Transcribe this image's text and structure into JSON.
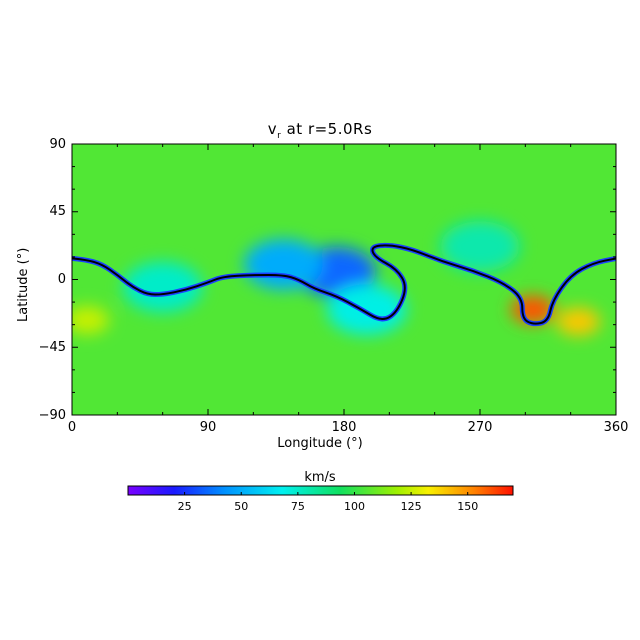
{
  "chart_data": {
    "type": "heatmap",
    "title_main": "v",
    "title_sub": "r",
    "title_rest": " at r=5.0Rs",
    "xlabel": "Longitude (°)",
    "ylabel": "Latitude (°)",
    "xlim": [
      0,
      360
    ],
    "ylim": [
      -90,
      90
    ],
    "xticks": [
      0,
      90,
      180,
      270,
      360
    ],
    "yticks": [
      90,
      45,
      0,
      -45,
      -90
    ],
    "ytick_labels": [
      "90",
      "45",
      "0",
      "−45",
      "−90"
    ],
    "colorbar": {
      "title": "km/s",
      "range": [
        0,
        170
      ],
      "ticks": [
        25,
        50,
        75,
        100,
        125,
        150
      ]
    },
    "background_value": 105,
    "current_sheet": [
      [
        0,
        14
      ],
      [
        10,
        13
      ],
      [
        20,
        10
      ],
      [
        30,
        3
      ],
      [
        40,
        -5
      ],
      [
        50,
        -10
      ],
      [
        60,
        -10
      ],
      [
        75,
        -7
      ],
      [
        90,
        -2
      ],
      [
        100,
        2
      ],
      [
        120,
        3
      ],
      [
        140,
        3
      ],
      [
        150,
        0
      ],
      [
        160,
        -6
      ],
      [
        175,
        -11
      ],
      [
        190,
        -19
      ],
      [
        205,
        -28
      ],
      [
        215,
        -22
      ],
      [
        222,
        -5
      ],
      [
        215,
        7
      ],
      [
        200,
        15
      ],
      [
        198,
        22
      ],
      [
        210,
        23
      ],
      [
        225,
        20
      ],
      [
        245,
        12
      ],
      [
        265,
        6
      ],
      [
        285,
        -2
      ],
      [
        298,
        -12
      ],
      [
        298,
        -26
      ],
      [
        305,
        -30
      ],
      [
        315,
        -28
      ],
      [
        318,
        -14
      ],
      [
        330,
        3
      ],
      [
        345,
        11
      ],
      [
        360,
        14
      ]
    ],
    "features": [
      {
        "lon": 305,
        "lat": -20,
        "value": 160
      },
      {
        "lon": 335,
        "lat": -28,
        "value": 140
      },
      {
        "lon": 10,
        "lat": -27,
        "value": 125
      },
      {
        "lon": 175,
        "lat": 5,
        "value": 35
      },
      {
        "lon": 140,
        "lat": 10,
        "value": 50
      },
      {
        "lon": 60,
        "lat": -5,
        "value": 75
      },
      {
        "lon": 195,
        "lat": -20,
        "value": 70
      },
      {
        "lon": 270,
        "lat": 22,
        "value": 80
      }
    ]
  }
}
